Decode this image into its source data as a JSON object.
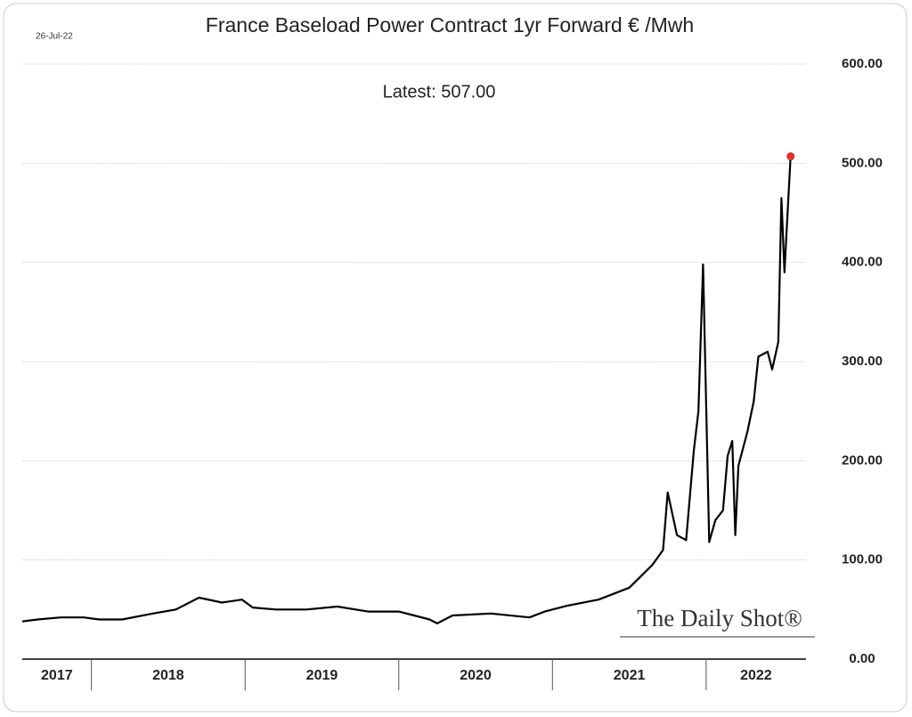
{
  "chart_data": {
    "type": "line",
    "title": "France Baseload Power Contract 1yr Forward € /Mwh",
    "date_label": "26-Jul-22",
    "annotation": "Latest:  507.00",
    "source": "The Daily Shot®",
    "x": [
      2017.55,
      2017.65,
      2017.8,
      2017.95,
      2018.05,
      2018.2,
      2018.4,
      2018.55,
      2018.7,
      2018.85,
      2018.98,
      2019.05,
      2019.2,
      2019.4,
      2019.6,
      2019.8,
      2020.0,
      2020.1,
      2020.2,
      2020.25,
      2020.35,
      2020.6,
      2020.85,
      2020.95,
      2021.1,
      2021.3,
      2021.5,
      2021.65,
      2021.72,
      2021.75,
      2021.81,
      2021.87,
      2021.92,
      2021.95,
      2021.98,
      2022.02,
      2022.06,
      2022.11,
      2022.14,
      2022.17,
      2022.19,
      2022.21,
      2022.27,
      2022.31,
      2022.34,
      2022.4,
      2022.43,
      2022.47,
      2022.49,
      2022.51,
      2022.53,
      2022.55
    ],
    "series": [
      {
        "name": "France Baseload Power Contract 1yr Forward",
        "color": "#000000",
        "values": [
          38,
          40,
          42,
          42,
          40,
          40,
          46,
          50,
          62,
          57,
          60,
          52,
          50,
          50,
          53,
          48,
          48,
          44,
          40,
          36,
          44,
          46,
          42,
          48,
          54,
          60,
          72,
          95,
          110,
          168,
          125,
          120,
          210,
          250,
          398,
          118,
          140,
          150,
          205,
          220,
          125,
          195,
          230,
          260,
          305,
          310,
          292,
          320,
          465,
          390,
          450,
          507
        ]
      }
    ],
    "latest_color": "#e0302a",
    "xlim": [
      2017.55,
      2022.65
    ],
    "xticks": [
      {
        "value": 2017,
        "label": "2017"
      },
      {
        "value": 2018,
        "label": "2018"
      },
      {
        "value": 2019,
        "label": "2019"
      },
      {
        "value": 2020,
        "label": "2020"
      },
      {
        "value": 2021,
        "label": "2021"
      },
      {
        "value": 2022,
        "label": "2022"
      }
    ],
    "ylim": [
      0,
      600
    ],
    "yticks": [
      {
        "value": 0,
        "label": "0.00"
      },
      {
        "value": 100,
        "label": "100.00"
      },
      {
        "value": 200,
        "label": "200.00"
      },
      {
        "value": 300,
        "label": "300.00"
      },
      {
        "value": 400,
        "label": "400.00"
      },
      {
        "value": 500,
        "label": "500.00"
      },
      {
        "value": 600,
        "label": "600.00"
      }
    ],
    "grid": true
  }
}
